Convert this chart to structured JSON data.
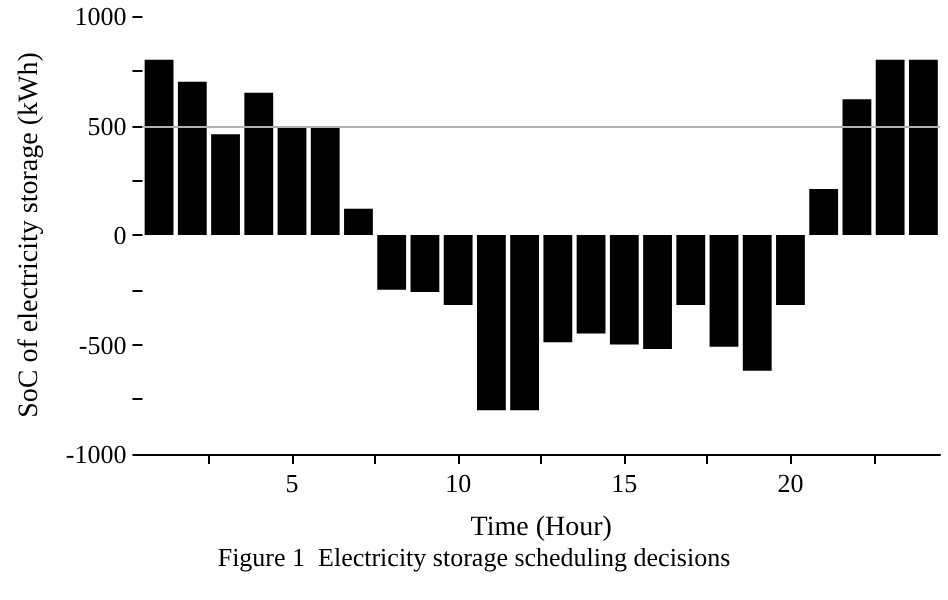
{
  "chart_data": {
    "type": "bar",
    "xlabel": "Time (Hour)",
    "ylabel": "SoC of electricity storage (kWh)",
    "annotations": [
      "Figure 1  Electricity storage scheduling decisions"
    ],
    "x": [
      1,
      2,
      3,
      4,
      5,
      6,
      7,
      8,
      9,
      10,
      11,
      12,
      13,
      14,
      15,
      16,
      17,
      18,
      19,
      20,
      21,
      22,
      23,
      24
    ],
    "values": [
      800,
      700,
      460,
      650,
      490,
      490,
      120,
      -250,
      -260,
      -320,
      -800,
      -800,
      -490,
      -450,
      -500,
      -520,
      -320,
      -510,
      -620,
      -320,
      210,
      620,
      800,
      800
    ],
    "color": "#000000",
    "xlim": [
      0.5,
      24.5
    ],
    "xticks": [
      {
        "value": 2.5,
        "label": null
      },
      5,
      {
        "value": 7.5,
        "label": null
      },
      10,
      {
        "value": 12.5,
        "label": null
      },
      15,
      {
        "value": 17.5,
        "label": null
      },
      20,
      {
        "value": 22.5,
        "label": null
      }
    ],
    "ylim": [
      -1000,
      1000
    ],
    "yticks": [
      -1000,
      {
        "value": -750,
        "label": null
      },
      -500,
      {
        "value": -250,
        "label": null
      },
      0,
      {
        "value": 250,
        "label": null
      },
      500,
      {
        "value": 750,
        "label": null
      },
      1000
    ],
    "ref_lines": [
      {
        "axis": "y",
        "value": 500,
        "label": null,
        "color": "#b0b0b0"
      }
    ]
  }
}
